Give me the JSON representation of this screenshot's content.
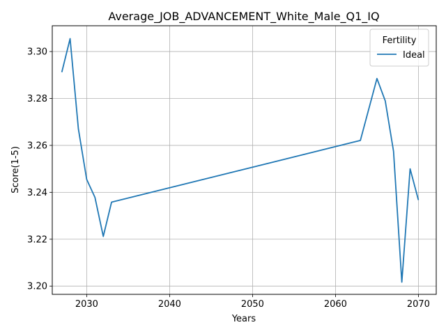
{
  "chart_data": {
    "type": "line",
    "title": "Average_JOB_ADVANCEMENT_White_Male_Q1_IQ",
    "xlabel": "Years",
    "ylabel": "Score(1-5)",
    "xlim": [
      2025.85,
      2072.15
    ],
    "ylim": [
      3.1965,
      3.311
    ],
    "x_ticks": [
      2030,
      2040,
      2050,
      2060,
      2070
    ],
    "y_ticks": [
      3.2,
      3.22,
      3.24,
      3.26,
      3.28,
      3.3
    ],
    "grid": true,
    "legend": {
      "title": "Fertility",
      "placement": "top-right"
    },
    "series": [
      {
        "name": "Ideal",
        "color": "#1f77b4",
        "x": [
          2027,
          2028,
          2029,
          2030,
          2031,
          2032,
          2033,
          2063,
          2065,
          2066,
          2067,
          2068,
          2069,
          2070
        ],
        "y": [
          3.2912,
          3.3055,
          3.267,
          3.2455,
          3.2378,
          3.2212,
          3.2358,
          3.2621,
          3.2885,
          3.279,
          3.2575,
          3.2017,
          3.25,
          3.2367
        ]
      }
    ]
  }
}
